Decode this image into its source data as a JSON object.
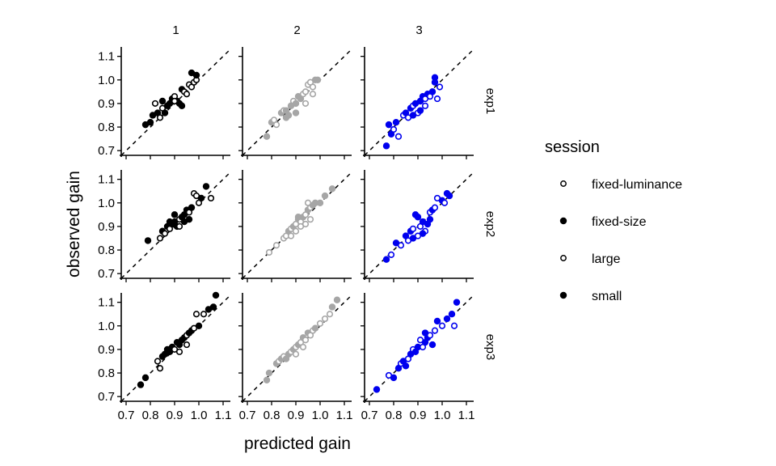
{
  "chart_data": {
    "type": "scatter",
    "xlabel": "predicted gain",
    "ylabel": "observed gain",
    "xlim": [
      0.68,
      1.13
    ],
    "ylim": [
      0.68,
      1.14
    ],
    "xticks": [
      0.7,
      0.8,
      0.9,
      1.0,
      1.1
    ],
    "yticks": [
      0.7,
      0.8,
      0.9,
      1.0,
      1.1
    ],
    "xtick_labels": [
      "0.7",
      "0.8",
      "0.9",
      "1.0",
      "1.1"
    ],
    "ytick_labels": [
      "0.7",
      "0.8",
      "0.9",
      "1.0",
      "1.1"
    ],
    "reference_line": "identity (dashed)",
    "columns": [
      "1",
      "2",
      "3"
    ],
    "rows": [
      "exp1",
      "exp2",
      "exp3"
    ],
    "column_colors": [
      "#000000",
      "#a6a6a6",
      "#0000ee"
    ],
    "legend": {
      "title": "session",
      "placement": "right",
      "items": [
        {
          "label": "fixed-luminance",
          "marker": "open"
        },
        {
          "label": "fixed-size",
          "marker": "filled"
        },
        {
          "label": "large",
          "marker": "open"
        },
        {
          "label": "small",
          "marker": "filled"
        }
      ]
    },
    "panels": [
      {
        "row": "exp1",
        "col": "1",
        "points": [
          [
            0.78,
            0.81,
            "f"
          ],
          [
            0.8,
            0.82,
            "f"
          ],
          [
            0.81,
            0.85,
            "f"
          ],
          [
            0.83,
            0.86,
            "f"
          ],
          [
            0.84,
            0.84,
            "o"
          ],
          [
            0.85,
            0.88,
            "o"
          ],
          [
            0.86,
            0.86,
            "f"
          ],
          [
            0.87,
            0.89,
            "f"
          ],
          [
            0.88,
            0.9,
            "f"
          ],
          [
            0.89,
            0.92,
            "f"
          ],
          [
            0.9,
            0.93,
            "o"
          ],
          [
            0.91,
            0.91,
            "f"
          ],
          [
            0.92,
            0.9,
            "f"
          ],
          [
            0.93,
            0.96,
            "f"
          ],
          [
            0.94,
            0.95,
            "o"
          ],
          [
            0.95,
            0.94,
            "o"
          ],
          [
            0.96,
            0.98,
            "o"
          ],
          [
            0.97,
            0.97,
            "o"
          ],
          [
            0.98,
            0.99,
            "o"
          ],
          [
            0.99,
            1.0,
            "o"
          ],
          [
            0.97,
            1.03,
            "f"
          ],
          [
            0.99,
            1.02,
            "f"
          ],
          [
            0.85,
            0.91,
            "f"
          ],
          [
            0.82,
            0.9,
            "o"
          ],
          [
            0.93,
            0.89,
            "f"
          ],
          [
            0.9,
            0.91,
            "o"
          ]
        ]
      },
      {
        "row": "exp1",
        "col": "2",
        "points": [
          [
            0.78,
            0.76,
            "f"
          ],
          [
            0.8,
            0.82,
            "f"
          ],
          [
            0.81,
            0.83,
            "o"
          ],
          [
            0.82,
            0.81,
            "o"
          ],
          [
            0.84,
            0.86,
            "f"
          ],
          [
            0.85,
            0.87,
            "o"
          ],
          [
            0.86,
            0.84,
            "f"
          ],
          [
            0.87,
            0.85,
            "f"
          ],
          [
            0.88,
            0.89,
            "f"
          ],
          [
            0.89,
            0.91,
            "o"
          ],
          [
            0.9,
            0.9,
            "f"
          ],
          [
            0.91,
            0.93,
            "f"
          ],
          [
            0.92,
            0.92,
            "f"
          ],
          [
            0.93,
            0.94,
            "o"
          ],
          [
            0.94,
            0.95,
            "o"
          ],
          [
            0.95,
            0.98,
            "o"
          ],
          [
            0.96,
            0.99,
            "o"
          ],
          [
            0.97,
            0.97,
            "o"
          ],
          [
            0.98,
            1.0,
            "f"
          ],
          [
            0.99,
            1.0,
            "f"
          ],
          [
            0.94,
            0.9,
            "o"
          ],
          [
            0.97,
            0.94,
            "o"
          ],
          [
            0.9,
            0.86,
            "f"
          ],
          [
            0.86,
            0.87,
            "f"
          ]
        ]
      },
      {
        "row": "exp1",
        "col": "3",
        "points": [
          [
            0.77,
            0.72,
            "f"
          ],
          [
            0.78,
            0.81,
            "f"
          ],
          [
            0.79,
            0.77,
            "f"
          ],
          [
            0.8,
            0.79,
            "o"
          ],
          [
            0.81,
            0.82,
            "f"
          ],
          [
            0.82,
            0.76,
            "o"
          ],
          [
            0.84,
            0.85,
            "o"
          ],
          [
            0.85,
            0.86,
            "f"
          ],
          [
            0.86,
            0.84,
            "o"
          ],
          [
            0.87,
            0.88,
            "f"
          ],
          [
            0.88,
            0.89,
            "o"
          ],
          [
            0.89,
            0.9,
            "f"
          ],
          [
            0.9,
            0.86,
            "o"
          ],
          [
            0.91,
            0.91,
            "f"
          ],
          [
            0.92,
            0.93,
            "f"
          ],
          [
            0.93,
            0.92,
            "o"
          ],
          [
            0.94,
            0.94,
            "f"
          ],
          [
            0.95,
            0.93,
            "o"
          ],
          [
            0.96,
            0.95,
            "f"
          ],
          [
            0.97,
            0.99,
            "f"
          ],
          [
            0.98,
            0.92,
            "o"
          ],
          [
            0.99,
            0.97,
            "o"
          ],
          [
            0.97,
            1.01,
            "f"
          ],
          [
            0.88,
            0.85,
            "f"
          ],
          [
            0.93,
            0.89,
            "o"
          ],
          [
            0.91,
            0.87,
            "f"
          ]
        ]
      },
      {
        "row": "exp2",
        "col": "1",
        "points": [
          [
            0.79,
            0.84,
            "f"
          ],
          [
            0.84,
            0.85,
            "o"
          ],
          [
            0.85,
            0.88,
            "f"
          ],
          [
            0.86,
            0.87,
            "o"
          ],
          [
            0.87,
            0.9,
            "f"
          ],
          [
            0.88,
            0.89,
            "o"
          ],
          [
            0.89,
            0.91,
            "f"
          ],
          [
            0.9,
            0.92,
            "f"
          ],
          [
            0.91,
            0.9,
            "f"
          ],
          [
            0.92,
            0.93,
            "o"
          ],
          [
            0.93,
            0.94,
            "f"
          ],
          [
            0.94,
            0.95,
            "f"
          ],
          [
            0.95,
            0.97,
            "f"
          ],
          [
            0.96,
            0.96,
            "o"
          ],
          [
            0.97,
            0.98,
            "f"
          ],
          [
            0.98,
            1.04,
            "o"
          ],
          [
            0.99,
            1.03,
            "o"
          ],
          [
            1.0,
            1.0,
            "o"
          ],
          [
            1.01,
            1.02,
            "f"
          ],
          [
            1.03,
            1.07,
            "f"
          ],
          [
            1.05,
            1.02,
            "o"
          ],
          [
            0.9,
            0.95,
            "f"
          ],
          [
            0.92,
            0.9,
            "o"
          ],
          [
            0.94,
            0.92,
            "f"
          ],
          [
            0.96,
            0.93,
            "f"
          ],
          [
            0.88,
            0.92,
            "f"
          ]
        ]
      },
      {
        "row": "exp2",
        "col": "2",
        "points": [
          [
            0.79,
            0.79,
            "o"
          ],
          [
            0.82,
            0.82,
            "o"
          ],
          [
            0.85,
            0.85,
            "o"
          ],
          [
            0.86,
            0.86,
            "o"
          ],
          [
            0.87,
            0.88,
            "f"
          ],
          [
            0.88,
            0.89,
            "o"
          ],
          [
            0.89,
            0.9,
            "f"
          ],
          [
            0.9,
            0.91,
            "o"
          ],
          [
            0.91,
            0.93,
            "f"
          ],
          [
            0.92,
            0.92,
            "o"
          ],
          [
            0.93,
            0.94,
            "f"
          ],
          [
            0.94,
            0.95,
            "o"
          ],
          [
            0.95,
            0.97,
            "f"
          ],
          [
            0.96,
            0.98,
            "o"
          ],
          [
            0.97,
            0.99,
            "f"
          ],
          [
            0.98,
            1.0,
            "f"
          ],
          [
            1.0,
            1.0,
            "f"
          ],
          [
            1.02,
            1.03,
            "f"
          ],
          [
            1.05,
            1.06,
            "f"
          ],
          [
            0.9,
            0.88,
            "o"
          ],
          [
            0.92,
            0.9,
            "o"
          ],
          [
            0.94,
            0.91,
            "o"
          ],
          [
            0.96,
            0.93,
            "o"
          ],
          [
            0.88,
            0.86,
            "o"
          ],
          [
            0.91,
            0.94,
            "f"
          ],
          [
            0.95,
            1.0,
            "o"
          ]
        ]
      },
      {
        "row": "exp2",
        "col": "3",
        "points": [
          [
            0.77,
            0.76,
            "f"
          ],
          [
            0.79,
            0.78,
            "o"
          ],
          [
            0.81,
            0.83,
            "f"
          ],
          [
            0.83,
            0.82,
            "o"
          ],
          [
            0.85,
            0.86,
            "f"
          ],
          [
            0.86,
            0.84,
            "o"
          ],
          [
            0.87,
            0.88,
            "f"
          ],
          [
            0.88,
            0.89,
            "o"
          ],
          [
            0.89,
            0.95,
            "f"
          ],
          [
            0.9,
            0.94,
            "f"
          ],
          [
            0.91,
            0.9,
            "o"
          ],
          [
            0.92,
            0.92,
            "f"
          ],
          [
            0.93,
            0.88,
            "o"
          ],
          [
            0.94,
            0.91,
            "f"
          ],
          [
            0.95,
            0.96,
            "o"
          ],
          [
            0.96,
            0.97,
            "f"
          ],
          [
            0.97,
            0.98,
            "o"
          ],
          [
            0.98,
            1.02,
            "o"
          ],
          [
            1.0,
            1.01,
            "f"
          ],
          [
            1.01,
            1.0,
            "o"
          ],
          [
            1.02,
            1.04,
            "f"
          ],
          [
            1.03,
            1.03,
            "f"
          ],
          [
            0.9,
            0.86,
            "o"
          ],
          [
            0.95,
            0.93,
            "f"
          ],
          [
            0.92,
            0.87,
            "f"
          ],
          [
            0.88,
            0.85,
            "f"
          ]
        ]
      },
      {
        "row": "exp3",
        "col": "1",
        "points": [
          [
            0.76,
            0.75,
            "f"
          ],
          [
            0.78,
            0.78,
            "f"
          ],
          [
            0.83,
            0.85,
            "o"
          ],
          [
            0.84,
            0.82,
            "o"
          ],
          [
            0.85,
            0.87,
            "f"
          ],
          [
            0.86,
            0.88,
            "f"
          ],
          [
            0.87,
            0.9,
            "f"
          ],
          [
            0.88,
            0.89,
            "f"
          ],
          [
            0.89,
            0.91,
            "f"
          ],
          [
            0.9,
            0.9,
            "o"
          ],
          [
            0.91,
            0.93,
            "f"
          ],
          [
            0.92,
            0.92,
            "f"
          ],
          [
            0.93,
            0.94,
            "f"
          ],
          [
            0.94,
            0.95,
            "f"
          ],
          [
            0.95,
            0.96,
            "o"
          ],
          [
            0.96,
            0.97,
            "f"
          ],
          [
            0.97,
            0.98,
            "f"
          ],
          [
            0.98,
            0.99,
            "o"
          ],
          [
            0.99,
            1.05,
            "o"
          ],
          [
            1.0,
            1.0,
            "f"
          ],
          [
            1.02,
            1.05,
            "o"
          ],
          [
            1.04,
            1.07,
            "f"
          ],
          [
            1.06,
            1.08,
            "f"
          ],
          [
            1.07,
            1.13,
            "f"
          ],
          [
            0.92,
            0.89,
            "o"
          ],
          [
            0.95,
            0.92,
            "o"
          ]
        ]
      },
      {
        "row": "exp3",
        "col": "2",
        "points": [
          [
            0.78,
            0.77,
            "f"
          ],
          [
            0.79,
            0.8,
            "f"
          ],
          [
            0.82,
            0.84,
            "f"
          ],
          [
            0.83,
            0.85,
            "o"
          ],
          [
            0.84,
            0.86,
            "f"
          ],
          [
            0.85,
            0.87,
            "o"
          ],
          [
            0.86,
            0.86,
            "f"
          ],
          [
            0.87,
            0.88,
            "f"
          ],
          [
            0.88,
            0.89,
            "o"
          ],
          [
            0.89,
            0.9,
            "f"
          ],
          [
            0.9,
            0.91,
            "o"
          ],
          [
            0.91,
            0.92,
            "f"
          ],
          [
            0.92,
            0.93,
            "o"
          ],
          [
            0.93,
            0.95,
            "f"
          ],
          [
            0.94,
            0.94,
            "o"
          ],
          [
            0.95,
            0.97,
            "f"
          ],
          [
            0.96,
            0.96,
            "o"
          ],
          [
            0.97,
            0.98,
            "o"
          ],
          [
            0.98,
            0.99,
            "f"
          ],
          [
            1.0,
            1.01,
            "o"
          ],
          [
            1.02,
            1.03,
            "o"
          ],
          [
            1.04,
            1.05,
            "o"
          ],
          [
            1.05,
            1.08,
            "f"
          ],
          [
            1.07,
            1.11,
            "f"
          ],
          [
            0.9,
            0.88,
            "o"
          ],
          [
            0.93,
            0.91,
            "o"
          ]
        ]
      },
      {
        "row": "exp3",
        "col": "3",
        "points": [
          [
            0.73,
            0.73,
            "f"
          ],
          [
            0.78,
            0.79,
            "o"
          ],
          [
            0.8,
            0.78,
            "f"
          ],
          [
            0.82,
            0.82,
            "f"
          ],
          [
            0.83,
            0.84,
            "o"
          ],
          [
            0.84,
            0.85,
            "f"
          ],
          [
            0.85,
            0.83,
            "f"
          ],
          [
            0.86,
            0.86,
            "o"
          ],
          [
            0.87,
            0.88,
            "f"
          ],
          [
            0.88,
            0.9,
            "o"
          ],
          [
            0.89,
            0.89,
            "f"
          ],
          [
            0.9,
            0.91,
            "f"
          ],
          [
            0.91,
            0.94,
            "o"
          ],
          [
            0.92,
            0.91,
            "o"
          ],
          [
            0.93,
            0.93,
            "f"
          ],
          [
            0.94,
            0.95,
            "f"
          ],
          [
            0.95,
            0.96,
            "o"
          ],
          [
            0.96,
            0.92,
            "f"
          ],
          [
            0.97,
            0.98,
            "o"
          ],
          [
            0.98,
            1.02,
            "f"
          ],
          [
            1.0,
            1.0,
            "o"
          ],
          [
            1.02,
            1.03,
            "f"
          ],
          [
            1.04,
            1.05,
            "f"
          ],
          [
            1.06,
            1.1,
            "f"
          ],
          [
            1.05,
            1.0,
            "o"
          ],
          [
            0.93,
            0.97,
            "f"
          ]
        ]
      }
    ]
  }
}
